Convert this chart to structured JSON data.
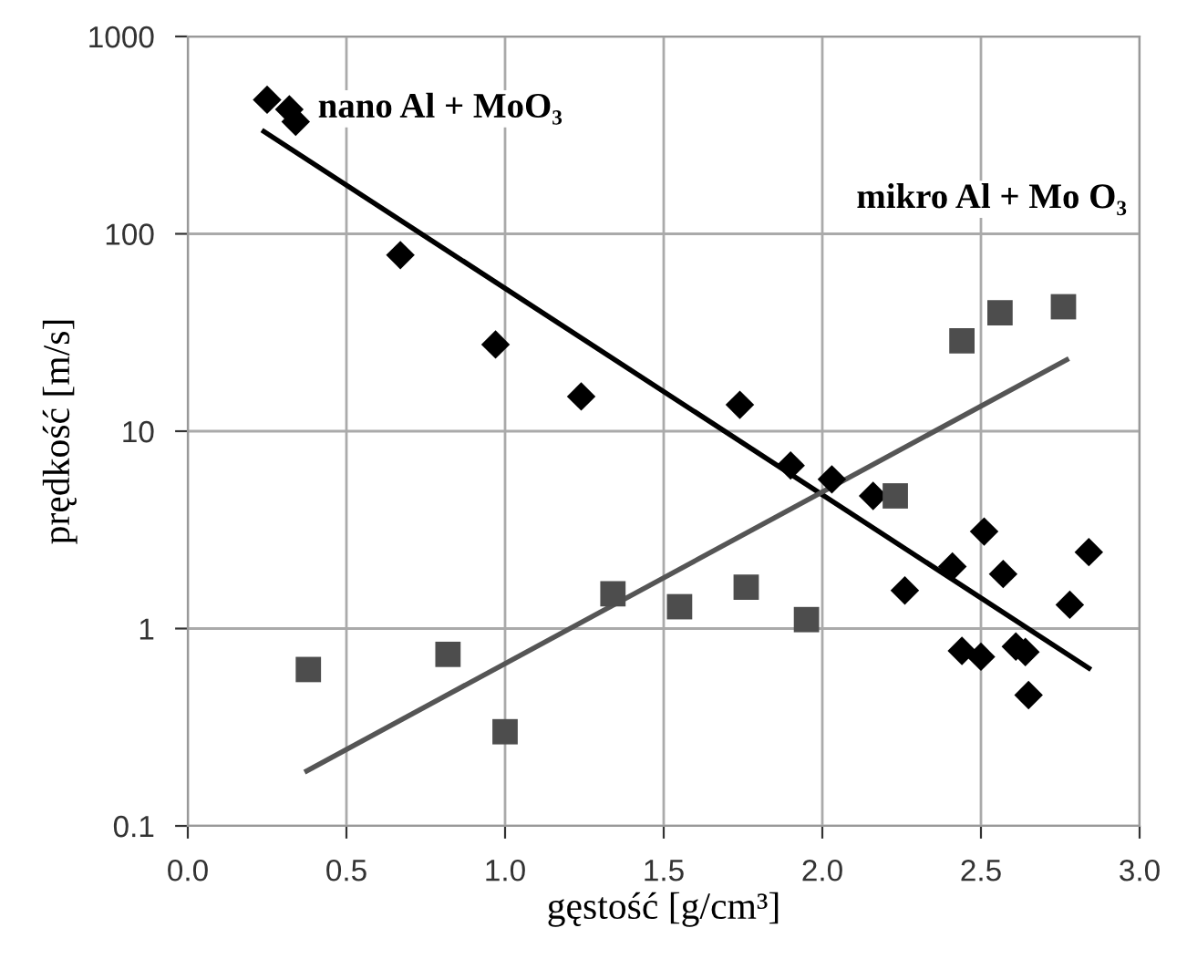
{
  "chart_data": {
    "type": "scatter",
    "xlabel": "gęstość [g/cm³]",
    "ylabel": "prędkość [m/s]",
    "log": "y",
    "grid": true,
    "legend": false,
    "xlim": [
      0,
      3
    ],
    "xticks": [
      {
        "value": 0,
        "label": "0.0"
      },
      {
        "value": 0.5,
        "label": "0.5"
      },
      {
        "value": 1,
        "label": "1.0"
      },
      {
        "value": 1.5,
        "label": "1.5"
      },
      {
        "value": 2,
        "label": "2.0"
      },
      {
        "value": 2.5,
        "label": "2.5"
      },
      {
        "value": 3,
        "label": "3.0"
      }
    ],
    "ylim": [
      0.1,
      1000
    ],
    "yticks": [
      0.1,
      1,
      10,
      100,
      1000
    ],
    "series": [
      {
        "name": "nano Al + MoO₃",
        "marker": "diamond",
        "color": "#000000",
        "x": [
          0.25,
          0.32,
          0.34,
          0.67,
          0.97,
          1.24,
          1.74,
          1.9,
          2.03,
          2.16,
          2.26,
          2.41,
          2.51,
          2.57,
          2.84,
          2.78,
          2.44,
          2.5,
          2.61,
          2.64,
          2.65
        ],
        "values": [
          478,
          427,
          370,
          78,
          27.5,
          15,
          13.6,
          6.7,
          5.7,
          4.7,
          1.56,
          2.06,
          3.1,
          1.89,
          2.44,
          1.32,
          0.77,
          0.72,
          0.81,
          0.76,
          0.46
        ]
      },
      {
        "name": "mikro Al + Mo O₃",
        "marker": "square",
        "color": "#4d4d4d",
        "x": [
          0.38,
          0.82,
          1.0,
          1.34,
          1.55,
          1.76,
          1.95,
          2.23,
          2.44,
          2.56,
          2.76
        ],
        "values": [
          0.62,
          0.74,
          0.3,
          1.5,
          1.29,
          1.62,
          1.11,
          4.7,
          28.7,
          39.8,
          42.7
        ]
      },
      {
        "type": "line",
        "color": "#000000",
        "x": [
          0.24,
          2.84
        ],
        "values": [
          330,
          0.63
        ]
      },
      {
        "type": "line",
        "color": "#555555",
        "x": [
          0.375,
          2.77
        ],
        "values": [
          0.19,
          23
        ]
      }
    ]
  }
}
